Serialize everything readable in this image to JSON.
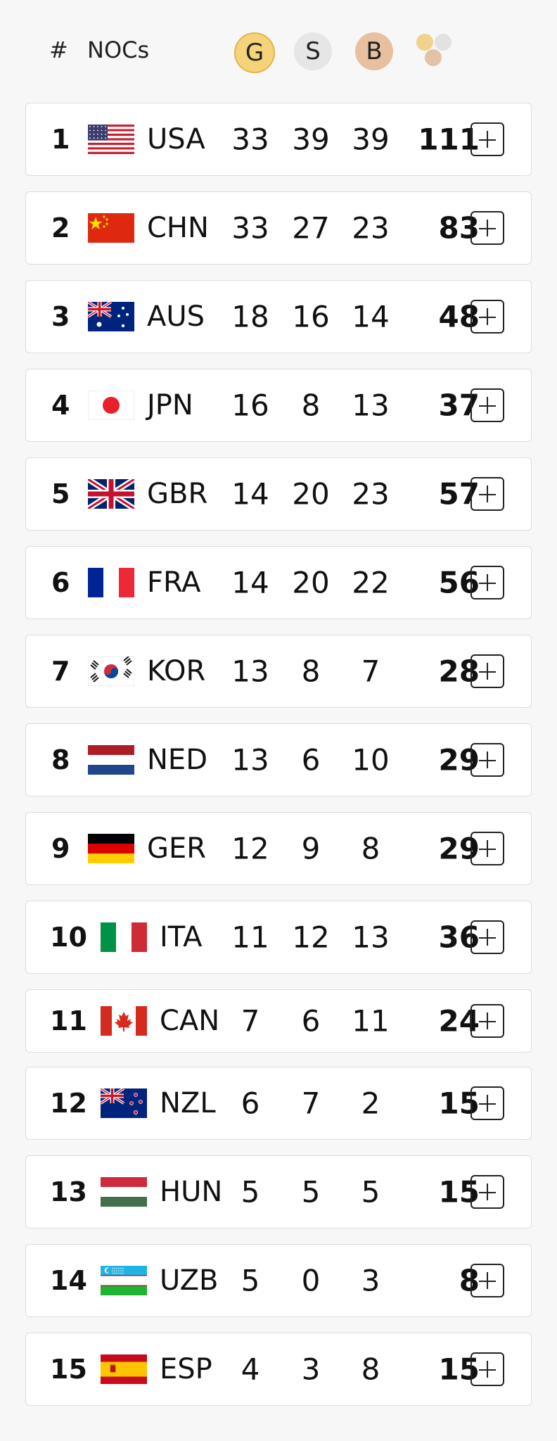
{
  "header": {
    "rank_label": "#",
    "noc_label": "NOCs",
    "gold_label": "G",
    "silver_label": "S",
    "bronze_label": "B",
    "total_icon": "medals-total-icon"
  },
  "colors": {
    "gold": "#f4d37a",
    "silver": "#e6e6e6",
    "bronze": "#e8c0a0",
    "row_bg": "#ffffff",
    "page_bg": "#f7f7f7"
  },
  "rows": [
    {
      "rank": "1",
      "noc": "USA",
      "gold": "33",
      "silver": "39",
      "bronze": "39",
      "total": "111"
    },
    {
      "rank": "2",
      "noc": "CHN",
      "gold": "33",
      "silver": "27",
      "bronze": "23",
      "total": "83"
    },
    {
      "rank": "3",
      "noc": "AUS",
      "gold": "18",
      "silver": "16",
      "bronze": "14",
      "total": "48"
    },
    {
      "rank": "4",
      "noc": "JPN",
      "gold": "16",
      "silver": "8",
      "bronze": "13",
      "total": "37"
    },
    {
      "rank": "5",
      "noc": "GBR",
      "gold": "14",
      "silver": "20",
      "bronze": "23",
      "total": "57"
    },
    {
      "rank": "6",
      "noc": "FRA",
      "gold": "14",
      "silver": "20",
      "bronze": "22",
      "total": "56"
    },
    {
      "rank": "7",
      "noc": "KOR",
      "gold": "13",
      "silver": "8",
      "bronze": "7",
      "total": "28"
    },
    {
      "rank": "8",
      "noc": "NED",
      "gold": "13",
      "silver": "6",
      "bronze": "10",
      "total": "29"
    },
    {
      "rank": "9",
      "noc": "GER",
      "gold": "12",
      "silver": "9",
      "bronze": "8",
      "total": "29"
    },
    {
      "rank": "10",
      "noc": "ITA",
      "gold": "11",
      "silver": "12",
      "bronze": "13",
      "total": "36"
    },
    {
      "rank": "11",
      "noc": "CAN",
      "gold": "7",
      "silver": "6",
      "bronze": "11",
      "total": "24"
    },
    {
      "rank": "12",
      "noc": "NZL",
      "gold": "6",
      "silver": "7",
      "bronze": "2",
      "total": "15"
    },
    {
      "rank": "13",
      "noc": "HUN",
      "gold": "5",
      "silver": "5",
      "bronze": "5",
      "total": "15"
    },
    {
      "rank": "14",
      "noc": "UZB",
      "gold": "5",
      "silver": "0",
      "bronze": "3",
      "total": "8"
    },
    {
      "rank": "15",
      "noc": "ESP",
      "gold": "4",
      "silver": "3",
      "bronze": "8",
      "total": "15"
    }
  ]
}
